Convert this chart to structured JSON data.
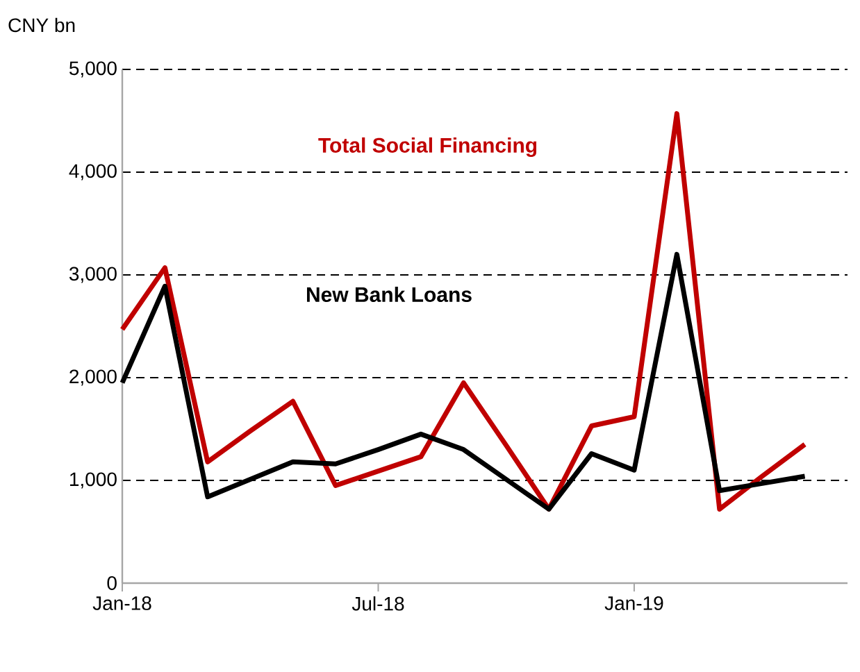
{
  "chart_data": {
    "type": "line",
    "ylabel": "CNY bn",
    "x": [
      "2018-01",
      "2018-02",
      "2018-03",
      "2018-04",
      "2018-05",
      "2018-06",
      "2018-07",
      "2018-08",
      "2018-09",
      "2018-10",
      "2018-11",
      "2018-12",
      "2019-01",
      "2019-02",
      "2019-03",
      "2019-04",
      "2019-05"
    ],
    "series": [
      {
        "name": "Total Social Financing",
        "color": "#c00000",
        "values": [
          2470,
          3070,
          1180,
          1480,
          1770,
          950,
          1090,
          1230,
          1950,
          1340,
          720,
          1530,
          1620,
          4570,
          720,
          1040,
          1350
        ]
      },
      {
        "name": "New Bank Loans",
        "color": "#000000",
        "values": [
          1950,
          2890,
          840,
          1010,
          1180,
          1160,
          1300,
          1450,
          1300,
          1010,
          720,
          1260,
          1100,
          3200,
          900,
          970,
          1040
        ]
      }
    ],
    "xlim": [
      "2018-01",
      "2019-06"
    ],
    "xticks": [
      {
        "value": "2018-01",
        "label": "Jan-18"
      },
      {
        "value": "2018-07",
        "label": "Jul-18"
      },
      {
        "value": "2019-01",
        "label": "Jan-19"
      }
    ],
    "ylim": [
      0,
      5000
    ],
    "yticks": [
      {
        "value": 0,
        "label": "0"
      },
      {
        "value": 1000,
        "label": "1,000"
      },
      {
        "value": 2000,
        "label": "2,000"
      },
      {
        "value": 3000,
        "label": "3,000"
      },
      {
        "value": 4000,
        "label": "4,000"
      },
      {
        "value": 5000,
        "label": "5,000"
      }
    ],
    "grid": "y",
    "marker": "none",
    "line_style": "solid"
  }
}
